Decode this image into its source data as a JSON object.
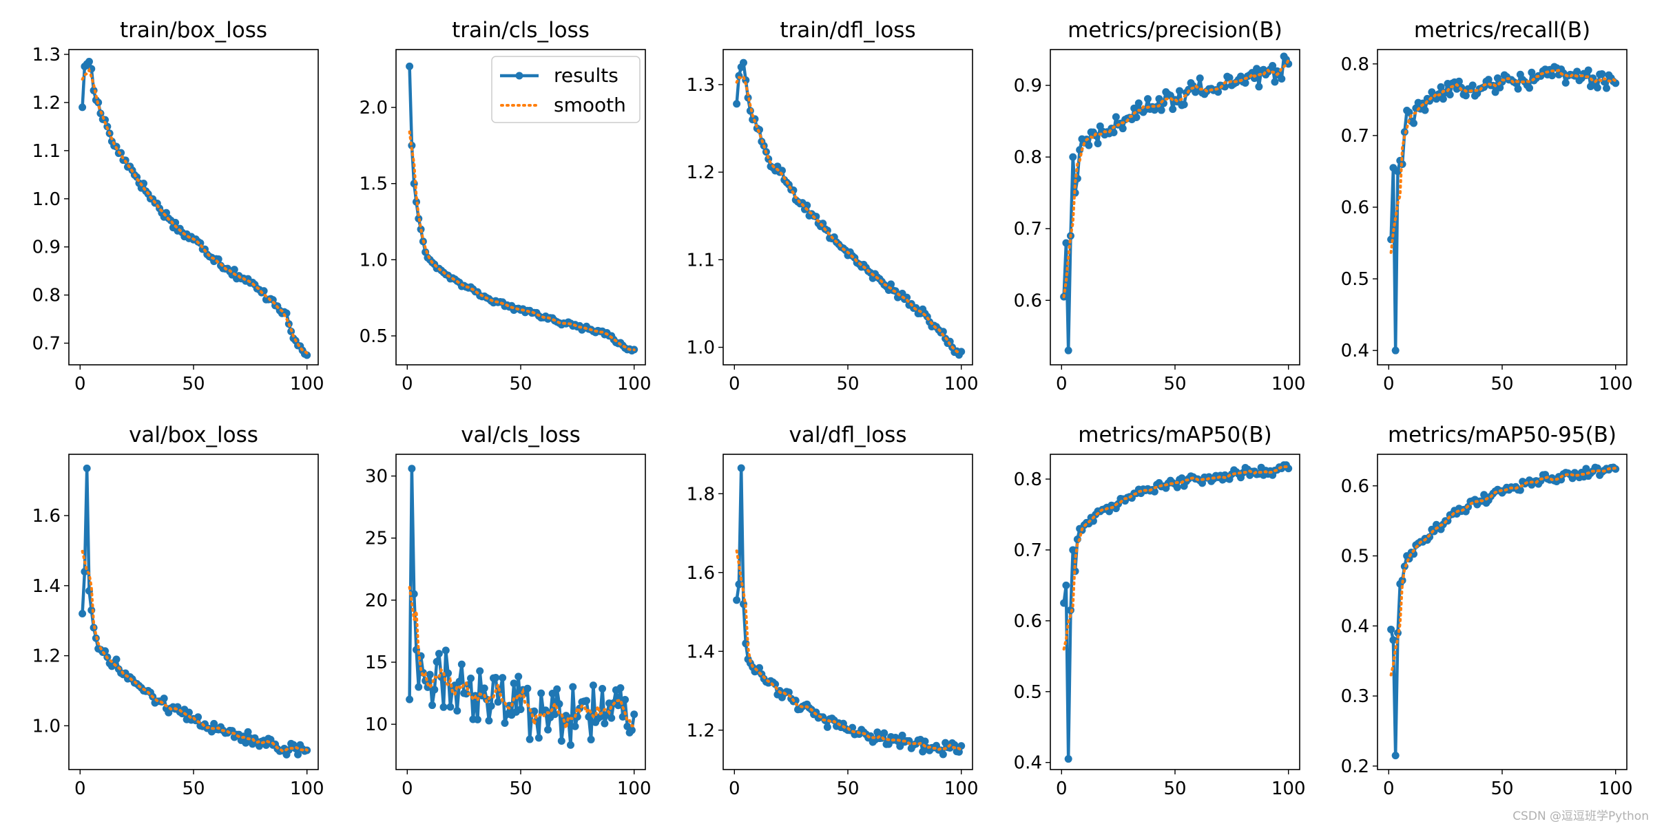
{
  "colors": {
    "results": "#1f77b4",
    "smooth": "#ff7f0e"
  },
  "legend": {
    "results_label": "results",
    "smooth_label": "smooth"
  },
  "watermark": "CSDN @逗逗班学Python",
  "chart_data": [
    {
      "type": "line",
      "title": "train/box_loss",
      "xlim": [
        -4.95,
        104.95
      ],
      "ylim": [
        0.655,
        1.31
      ],
      "xticks": [
        0,
        50,
        100
      ],
      "yticks": [
        0.7,
        0.8,
        0.9,
        1.0,
        1.1,
        1.2,
        1.3
      ],
      "has_legend": false,
      "anchors": [
        [
          1,
          1.19
        ],
        [
          2,
          1.275
        ],
        [
          3,
          1.28
        ],
        [
          4,
          1.285
        ],
        [
          5,
          1.27
        ],
        [
          6,
          1.225
        ],
        [
          7,
          1.205
        ],
        [
          8,
          1.2
        ],
        [
          10,
          1.165
        ],
        [
          12,
          1.15
        ],
        [
          15,
          1.11
        ],
        [
          20,
          1.08
        ],
        [
          25,
          1.045
        ],
        [
          30,
          1.01
        ],
        [
          35,
          0.98
        ],
        [
          40,
          0.955
        ],
        [
          45,
          0.93
        ],
        [
          50,
          0.915
        ],
        [
          55,
          0.895
        ],
        [
          60,
          0.875
        ],
        [
          65,
          0.855
        ],
        [
          70,
          0.84
        ],
        [
          75,
          0.825
        ],
        [
          80,
          0.805
        ],
        [
          85,
          0.79
        ],
        [
          90,
          0.765
        ],
        [
          92,
          0.74
        ],
        [
          94,
          0.71
        ],
        [
          96,
          0.695
        ],
        [
          98,
          0.685
        ],
        [
          100,
          0.675
        ]
      ],
      "jitter": 0.01
    },
    {
      "type": "line",
      "title": "train/cls_loss",
      "xlim": [
        -4.95,
        104.95
      ],
      "ylim": [
        0.31,
        2.38
      ],
      "xticks": [
        0,
        50,
        100
      ],
      "yticks": [
        0.5,
        1.0,
        1.5,
        2.0
      ],
      "has_legend": true,
      "anchors": [
        [
          1,
          2.27
        ],
        [
          2,
          1.75
        ],
        [
          3,
          1.5
        ],
        [
          4,
          1.38
        ],
        [
          5,
          1.27
        ],
        [
          6,
          1.2
        ],
        [
          7,
          1.12
        ],
        [
          8,
          1.05
        ],
        [
          10,
          1.0
        ],
        [
          12,
          0.97
        ],
        [
          15,
          0.93
        ],
        [
          20,
          0.88
        ],
        [
          25,
          0.83
        ],
        [
          30,
          0.79
        ],
        [
          35,
          0.75
        ],
        [
          40,
          0.72
        ],
        [
          45,
          0.69
        ],
        [
          50,
          0.67
        ],
        [
          55,
          0.65
        ],
        [
          60,
          0.62
        ],
        [
          65,
          0.6
        ],
        [
          70,
          0.58
        ],
        [
          75,
          0.56
        ],
        [
          80,
          0.545
        ],
        [
          85,
          0.53
        ],
        [
          90,
          0.5
        ],
        [
          93,
          0.45
        ],
        [
          96,
          0.42
        ],
        [
          100,
          0.41
        ]
      ],
      "jitter": 0.015
    },
    {
      "type": "line",
      "title": "train/dfl_loss",
      "xlim": [
        -4.95,
        104.95
      ],
      "ylim": [
        0.98,
        1.34
      ],
      "xticks": [
        0,
        50,
        100
      ],
      "yticks": [
        1.0,
        1.1,
        1.2,
        1.3
      ],
      "has_legend": false,
      "anchors": [
        [
          1,
          1.278
        ],
        [
          2,
          1.31
        ],
        [
          3,
          1.32
        ],
        [
          4,
          1.325
        ],
        [
          5,
          1.305
        ],
        [
          6,
          1.285
        ],
        [
          7,
          1.27
        ],
        [
          8,
          1.26
        ],
        [
          10,
          1.25
        ],
        [
          12,
          1.235
        ],
        [
          15,
          1.215
        ],
        [
          20,
          1.2
        ],
        [
          25,
          1.18
        ],
        [
          30,
          1.165
        ],
        [
          35,
          1.15
        ],
        [
          40,
          1.135
        ],
        [
          45,
          1.12
        ],
        [
          50,
          1.105
        ],
        [
          55,
          1.095
        ],
        [
          60,
          1.085
        ],
        [
          65,
          1.075
        ],
        [
          70,
          1.065
        ],
        [
          75,
          1.055
        ],
        [
          80,
          1.045
        ],
        [
          85,
          1.035
        ],
        [
          90,
          1.02
        ],
        [
          93,
          1.01
        ],
        [
          96,
          1.0
        ],
        [
          100,
          0.995
        ]
      ],
      "jitter": 0.006
    },
    {
      "type": "line",
      "title": "metrics/precision(B)",
      "xlim": [
        -4.95,
        104.95
      ],
      "ylim": [
        0.51,
        0.95
      ],
      "xticks": [
        0,
        50,
        100
      ],
      "yticks": [
        0.6,
        0.7,
        0.8,
        0.9
      ],
      "has_legend": false,
      "anchors": [
        [
          1,
          0.605
        ],
        [
          2,
          0.68
        ],
        [
          3,
          0.53
        ],
        [
          4,
          0.69
        ],
        [
          5,
          0.8
        ],
        [
          6,
          0.75
        ],
        [
          7,
          0.77
        ],
        [
          8,
          0.81
        ],
        [
          10,
          0.82
        ],
        [
          15,
          0.83
        ],
        [
          20,
          0.835
        ],
        [
          25,
          0.845
        ],
        [
          30,
          0.855
        ],
        [
          35,
          0.865
        ],
        [
          40,
          0.87
        ],
        [
          45,
          0.875
        ],
        [
          50,
          0.88
        ],
        [
          55,
          0.89
        ],
        [
          60,
          0.895
        ],
        [
          65,
          0.895
        ],
        [
          70,
          0.9
        ],
        [
          75,
          0.9
        ],
        [
          80,
          0.905
        ],
        [
          85,
          0.91
        ],
        [
          90,
          0.915
        ],
        [
          95,
          0.92
        ],
        [
          100,
          0.93
        ]
      ],
      "jitter": 0.015
    },
    {
      "type": "line",
      "title": "metrics/recall(B)",
      "xlim": [
        -4.95,
        104.95
      ],
      "ylim": [
        0.38,
        0.82
      ],
      "xticks": [
        0,
        50,
        100
      ],
      "yticks": [
        0.4,
        0.5,
        0.6,
        0.7,
        0.8
      ],
      "has_legend": false,
      "anchors": [
        [
          1,
          0.555
        ],
        [
          2,
          0.655
        ],
        [
          3,
          0.4
        ],
        [
          4,
          0.65
        ],
        [
          5,
          0.665
        ],
        [
          6,
          0.66
        ],
        [
          7,
          0.705
        ],
        [
          8,
          0.735
        ],
        [
          10,
          0.72
        ],
        [
          15,
          0.745
        ],
        [
          20,
          0.755
        ],
        [
          25,
          0.76
        ],
        [
          30,
          0.765
        ],
        [
          35,
          0.765
        ],
        [
          40,
          0.765
        ],
        [
          45,
          0.77
        ],
        [
          50,
          0.775
        ],
        [
          55,
          0.775
        ],
        [
          60,
          0.775
        ],
        [
          65,
          0.78
        ],
        [
          70,
          0.785
        ],
        [
          75,
          0.785
        ],
        [
          80,
          0.785
        ],
        [
          85,
          0.78
        ],
        [
          90,
          0.78
        ],
        [
          95,
          0.775
        ],
        [
          100,
          0.773
        ]
      ],
      "jitter": 0.012
    },
    {
      "type": "line",
      "title": "val/box_loss",
      "xlim": [
        -4.95,
        104.95
      ],
      "ylim": [
        0.875,
        1.775
      ],
      "xticks": [
        0,
        50,
        100
      ],
      "yticks": [
        1.0,
        1.2,
        1.4,
        1.6
      ],
      "has_legend": false,
      "anchors": [
        [
          1,
          1.32
        ],
        [
          2,
          1.44
        ],
        [
          3,
          1.735
        ],
        [
          4,
          1.385
        ],
        [
          5,
          1.33
        ],
        [
          6,
          1.28
        ],
        [
          7,
          1.25
        ],
        [
          8,
          1.22
        ],
        [
          10,
          1.21
        ],
        [
          15,
          1.18
        ],
        [
          20,
          1.15
        ],
        [
          25,
          1.12
        ],
        [
          30,
          1.1
        ],
        [
          35,
          1.07
        ],
        [
          40,
          1.05
        ],
        [
          45,
          1.035
        ],
        [
          50,
          1.02
        ],
        [
          55,
          1.005
        ],
        [
          60,
          0.99
        ],
        [
          65,
          0.98
        ],
        [
          70,
          0.975
        ],
        [
          75,
          0.965
        ],
        [
          80,
          0.955
        ],
        [
          85,
          0.945
        ],
        [
          90,
          0.935
        ],
        [
          95,
          0.935
        ],
        [
          100,
          0.93
        ]
      ],
      "jitter": 0.018
    },
    {
      "type": "line",
      "title": "val/cls_loss",
      "xlim": [
        -4.95,
        104.95
      ],
      "ylim": [
        6.35,
        31.75
      ],
      "xticks": [
        0,
        50,
        100
      ],
      "yticks": [
        10,
        15,
        20,
        25,
        30
      ],
      "has_legend": false,
      "anchors": [
        [
          1,
          12
        ],
        [
          2,
          30.6
        ],
        [
          3,
          20.5
        ],
        [
          4,
          16
        ],
        [
          5,
          13
        ],
        [
          6,
          15.5
        ],
        [
          8,
          13.5
        ],
        [
          10,
          14
        ],
        [
          15,
          13.8
        ],
        [
          20,
          13
        ],
        [
          25,
          12.5
        ],
        [
          30,
          12.3
        ],
        [
          35,
          12
        ],
        [
          40,
          11.8
        ],
        [
          45,
          11.5
        ],
        [
          50,
          11.2
        ],
        [
          55,
          11
        ],
        [
          60,
          11
        ],
        [
          65,
          10.8
        ],
        [
          70,
          10.7
        ],
        [
          75,
          10.6
        ],
        [
          80,
          10.6
        ],
        [
          85,
          10.6
        ],
        [
          90,
          10.5
        ],
        [
          95,
          10.6
        ],
        [
          100,
          10.8
        ]
      ],
      "jitter": 2.6
    },
    {
      "type": "line",
      "title": "val/dfl_loss",
      "xlim": [
        -4.95,
        104.95
      ],
      "ylim": [
        1.1,
        1.9
      ],
      "xticks": [
        0,
        50,
        100
      ],
      "yticks": [
        1.2,
        1.4,
        1.6,
        1.8
      ],
      "has_legend": false,
      "anchors": [
        [
          1,
          1.53
        ],
        [
          2,
          1.57
        ],
        [
          3,
          1.865
        ],
        [
          4,
          1.52
        ],
        [
          5,
          1.42
        ],
        [
          6,
          1.38
        ],
        [
          7,
          1.37
        ],
        [
          8,
          1.36
        ],
        [
          10,
          1.35
        ],
        [
          15,
          1.32
        ],
        [
          20,
          1.3
        ],
        [
          25,
          1.28
        ],
        [
          30,
          1.26
        ],
        [
          35,
          1.24
        ],
        [
          40,
          1.225
        ],
        [
          45,
          1.21
        ],
        [
          50,
          1.2
        ],
        [
          55,
          1.19
        ],
        [
          60,
          1.185
        ],
        [
          65,
          1.18
        ],
        [
          70,
          1.175
        ],
        [
          75,
          1.17
        ],
        [
          80,
          1.165
        ],
        [
          85,
          1.155
        ],
        [
          90,
          1.15
        ],
        [
          95,
          1.155
        ],
        [
          100,
          1.16
        ]
      ],
      "jitter": 0.016
    },
    {
      "type": "line",
      "title": "metrics/mAP50(B)",
      "xlim": [
        -4.95,
        104.95
      ],
      "ylim": [
        0.39,
        0.835
      ],
      "xticks": [
        0,
        50,
        100
      ],
      "yticks": [
        0.4,
        0.5,
        0.6,
        0.7,
        0.8
      ],
      "has_legend": false,
      "anchors": [
        [
          1,
          0.625
        ],
        [
          2,
          0.65
        ],
        [
          3,
          0.405
        ],
        [
          4,
          0.615
        ],
        [
          5,
          0.7
        ],
        [
          6,
          0.67
        ],
        [
          7,
          0.715
        ],
        [
          8,
          0.73
        ],
        [
          10,
          0.735
        ],
        [
          15,
          0.75
        ],
        [
          20,
          0.76
        ],
        [
          25,
          0.765
        ],
        [
          30,
          0.775
        ],
        [
          35,
          0.78
        ],
        [
          40,
          0.785
        ],
        [
          45,
          0.79
        ],
        [
          50,
          0.793
        ],
        [
          55,
          0.797
        ],
        [
          60,
          0.8
        ],
        [
          65,
          0.803
        ],
        [
          70,
          0.805
        ],
        [
          75,
          0.807
        ],
        [
          80,
          0.809
        ],
        [
          85,
          0.811
        ],
        [
          90,
          0.812
        ],
        [
          95,
          0.813
        ],
        [
          100,
          0.815
        ]
      ],
      "jitter": 0.007
    },
    {
      "type": "line",
      "title": "metrics/mAP50-95(B)",
      "xlim": [
        -4.95,
        104.95
      ],
      "ylim": [
        0.195,
        0.645
      ],
      "xticks": [
        0,
        50,
        100
      ],
      "yticks": [
        0.2,
        0.3,
        0.4,
        0.5,
        0.6
      ],
      "has_legend": false,
      "anchors": [
        [
          1,
          0.395
        ],
        [
          2,
          0.38
        ],
        [
          3,
          0.215
        ],
        [
          4,
          0.39
        ],
        [
          5,
          0.46
        ],
        [
          6,
          0.465
        ],
        [
          7,
          0.485
        ],
        [
          8,
          0.5
        ],
        [
          10,
          0.505
        ],
        [
          15,
          0.52
        ],
        [
          20,
          0.535
        ],
        [
          25,
          0.55
        ],
        [
          30,
          0.56
        ],
        [
          35,
          0.57
        ],
        [
          40,
          0.578
        ],
        [
          45,
          0.585
        ],
        [
          50,
          0.59
        ],
        [
          55,
          0.597
        ],
        [
          60,
          0.603
        ],
        [
          65,
          0.607
        ],
        [
          70,
          0.61
        ],
        [
          75,
          0.613
        ],
        [
          80,
          0.616
        ],
        [
          85,
          0.619
        ],
        [
          90,
          0.621
        ],
        [
          95,
          0.622
        ],
        [
          100,
          0.624
        ]
      ],
      "jitter": 0.007
    }
  ]
}
